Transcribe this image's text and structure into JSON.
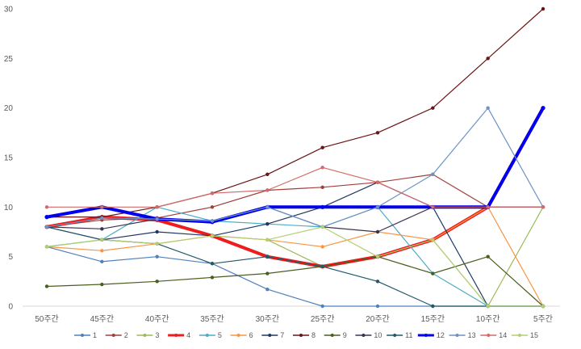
{
  "chart_data": {
    "type": "line",
    "title": "",
    "xlabel": "",
    "ylabel": "",
    "ylim": [
      0,
      30
    ],
    "yticks": [
      0,
      5,
      10,
      15,
      20,
      25,
      30
    ],
    "grid": false,
    "legend_position": "bottom",
    "categories": [
      "50주간",
      "45주간",
      "40주간",
      "35주간",
      "30주간",
      "25주간",
      "20주간",
      "15주간",
      "10주간",
      "5주간"
    ],
    "series": [
      {
        "name": "1",
        "color": "#4f81bd",
        "width": 1.2,
        "values": [
          6,
          4.5,
          5,
          4.3,
          1.7,
          0,
          0,
          0,
          0,
          0
        ]
      },
      {
        "name": "2",
        "color": "#a0413c",
        "width": 1.2,
        "values": [
          8,
          8.7,
          8.9,
          10,
          11.7,
          12,
          12.5,
          13.3,
          10,
          10
        ]
      },
      {
        "name": "3",
        "color": "#9bbb59",
        "width": 1.2,
        "values": [
          6,
          6.7,
          6.3,
          7.1,
          6.7,
          4,
          5,
          6.7,
          0,
          10
        ]
      },
      {
        "name": "4",
        "color": "#ee1c1c",
        "width": 4,
        "values": [
          8,
          9,
          8.7,
          7.1,
          5,
          4,
          5,
          6.7,
          10,
          20
        ]
      },
      {
        "name": "5",
        "color": "#4bacc6",
        "width": 1.2,
        "values": [
          6,
          6.7,
          10,
          8.6,
          8.3,
          8,
          10,
          3.3,
          0,
          0
        ]
      },
      {
        "name": "6",
        "color": "#f79646",
        "width": 1.2,
        "values": [
          6,
          5.6,
          6.3,
          7.1,
          6.7,
          6,
          7.5,
          6.7,
          10,
          0
        ]
      },
      {
        "name": "7",
        "color": "#1f3864",
        "width": 1.2,
        "values": [
          8,
          6.7,
          7.5,
          7.1,
          8.3,
          10,
          12.5,
          10,
          0,
          0
        ]
      },
      {
        "name": "8",
        "color": "#6b1414",
        "width": 1.2,
        "values": [
          9,
          9,
          10,
          11.4,
          13.3,
          16,
          17.5,
          20,
          25,
          30
        ]
      },
      {
        "name": "9",
        "color": "#4a5e1e",
        "width": 1.2,
        "values": [
          2,
          2.2,
          2.5,
          2.9,
          3.3,
          4,
          5,
          3.3,
          5,
          0
        ]
      },
      {
        "name": "10",
        "color": "#3f3151",
        "width": 1.2,
        "values": [
          8,
          7.8,
          8.8,
          8.6,
          10,
          8,
          7.5,
          10,
          10,
          10
        ]
      },
      {
        "name": "11",
        "color": "#215968",
        "width": 1.2,
        "values": [
          8,
          6.7,
          6.3,
          4.3,
          5,
          4,
          2.5,
          0,
          0,
          0
        ]
      },
      {
        "name": "12",
        "color": "#0000ee",
        "width": 4,
        "values": [
          9,
          10,
          8.8,
          8.5,
          10,
          10,
          10,
          10,
          10,
          20
        ]
      },
      {
        "name": "13",
        "color": "#6c93c4",
        "width": 1.2,
        "values": [
          8,
          8.9,
          8.8,
          8.6,
          10,
          8,
          10,
          13.3,
          20,
          10
        ]
      },
      {
        "name": "14",
        "color": "#d46a6a",
        "width": 1.2,
        "values": [
          10,
          10,
          10,
          11.4,
          11.7,
          14,
          12.5,
          10,
          10,
          10
        ]
      },
      {
        "name": "15",
        "color": "#b3cf73",
        "width": 1.2,
        "values": [
          6,
          6.7,
          6.3,
          7.1,
          6.7,
          8,
          5,
          6.7,
          0,
          0
        ]
      }
    ]
  }
}
